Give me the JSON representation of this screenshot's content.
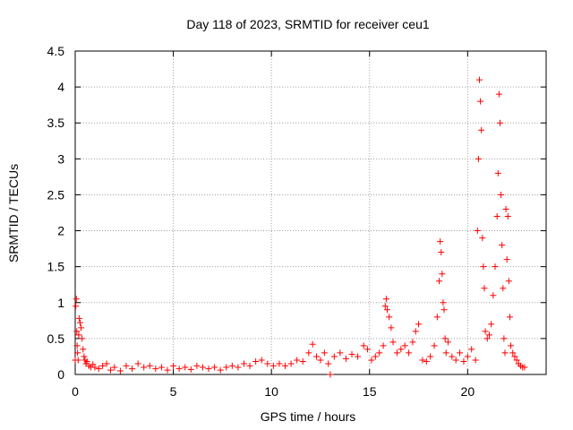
{
  "chart_data": {
    "type": "scatter",
    "title": "Day 118 of 2023, SRMTID for receiver ceu1",
    "xlabel": "GPS time / hours",
    "ylabel": "SRMTID / TECUs",
    "xlim": [
      0,
      24
    ],
    "ylim": [
      0,
      4.5
    ],
    "xticks": [
      0,
      5,
      10,
      15,
      20
    ],
    "xtick_labels": [
      "0",
      "5",
      "10",
      "15",
      "20"
    ],
    "yticks": [
      0,
      0.5,
      1,
      1.5,
      2,
      2.5,
      3,
      3.5,
      4,
      4.5
    ],
    "ytick_labels": [
      "0",
      "0.5",
      "1",
      "1.5",
      "2",
      "2.5",
      "3",
      "3.5",
      "4",
      "4.5"
    ],
    "grid": true,
    "marker": "+",
    "colors": {
      "series": "#ff0000",
      "grid": "#a0a0a0",
      "axis": "#000000"
    },
    "series": [
      {
        "name": "SRMTID",
        "x": [
          0.0,
          0.03,
          0.06,
          0.08,
          0.1,
          0.12,
          0.15,
          0.18,
          0.2,
          0.25,
          0.3,
          0.35,
          0.4,
          0.45,
          0.5,
          0.55,
          0.6,
          0.7,
          0.8,
          0.9,
          1.0,
          1.2,
          1.4,
          1.6,
          1.8,
          2.0,
          2.3,
          2.6,
          2.9,
          3.2,
          3.5,
          3.8,
          4.1,
          4.4,
          4.7,
          5.0,
          5.3,
          5.6,
          5.9,
          6.2,
          6.5,
          6.8,
          7.1,
          7.4,
          7.7,
          8.0,
          8.3,
          8.6,
          8.9,
          9.2,
          9.5,
          9.8,
          10.1,
          10.4,
          10.7,
          11.0,
          11.3,
          11.6,
          11.9,
          12.1,
          12.3,
          12.5,
          12.7,
          12.9,
          13.0,
          13.2,
          13.5,
          13.8,
          14.1,
          14.4,
          14.7,
          14.9,
          15.1,
          15.3,
          15.5,
          15.7,
          15.8,
          15.85,
          15.9,
          16.0,
          16.1,
          16.2,
          16.4,
          16.6,
          16.8,
          17.0,
          17.2,
          17.35,
          17.5,
          17.7,
          17.9,
          18.1,
          18.3,
          18.45,
          18.55,
          18.6,
          18.65,
          18.7,
          18.75,
          18.8,
          18.85,
          18.9,
          19.0,
          19.2,
          19.4,
          19.6,
          19.8,
          20.0,
          20.2,
          20.4,
          20.5,
          20.55,
          20.6,
          20.65,
          20.7,
          20.75,
          20.8,
          20.85,
          20.9,
          21.0,
          21.1,
          21.2,
          21.3,
          21.4,
          21.5,
          21.55,
          21.6,
          21.65,
          21.7,
          21.75,
          21.8,
          21.85,
          21.9,
          21.95,
          22.0,
          22.05,
          22.1,
          22.15,
          22.2,
          22.3,
          22.4,
          22.5,
          22.6,
          22.7,
          22.8,
          22.9
        ],
        "y": [
          0.2,
          0.95,
          1.05,
          0.6,
          0.4,
          0.3,
          0.2,
          0.55,
          0.78,
          0.72,
          0.65,
          0.5,
          0.35,
          0.25,
          0.2,
          0.15,
          0.18,
          0.12,
          0.1,
          0.14,
          0.1,
          0.08,
          0.12,
          0.15,
          0.06,
          0.1,
          0.05,
          0.12,
          0.08,
          0.15,
          0.1,
          0.12,
          0.08,
          0.1,
          0.06,
          0.12,
          0.08,
          0.1,
          0.07,
          0.12,
          0.1,
          0.08,
          0.1,
          0.06,
          0.1,
          0.12,
          0.1,
          0.15,
          0.12,
          0.18,
          0.2,
          0.15,
          0.12,
          0.15,
          0.12,
          0.15,
          0.2,
          0.18,
          0.3,
          0.42,
          0.25,
          0.2,
          0.3,
          0.15,
          0.0,
          0.25,
          0.3,
          0.22,
          0.28,
          0.25,
          0.4,
          0.35,
          0.2,
          0.25,
          0.3,
          0.4,
          0.95,
          1.05,
          0.9,
          0.8,
          0.65,
          0.45,
          0.3,
          0.35,
          0.4,
          0.3,
          0.45,
          0.6,
          0.7,
          0.2,
          0.18,
          0.25,
          0.4,
          0.8,
          1.3,
          1.85,
          1.7,
          1.4,
          1.0,
          0.9,
          0.5,
          0.3,
          0.45,
          0.25,
          0.2,
          0.3,
          0.18,
          0.25,
          0.35,
          0.2,
          2.0,
          3.0,
          4.1,
          3.8,
          3.4,
          1.9,
          1.5,
          1.2,
          0.6,
          0.5,
          0.55,
          0.7,
          1.1,
          1.5,
          2.2,
          2.8,
          3.9,
          3.5,
          2.5,
          1.8,
          1.2,
          0.5,
          0.3,
          2.3,
          1.6,
          2.2,
          1.3,
          0.8,
          0.4,
          0.3,
          0.25,
          0.2,
          0.15,
          0.12,
          0.1,
          0.1
        ]
      }
    ]
  }
}
